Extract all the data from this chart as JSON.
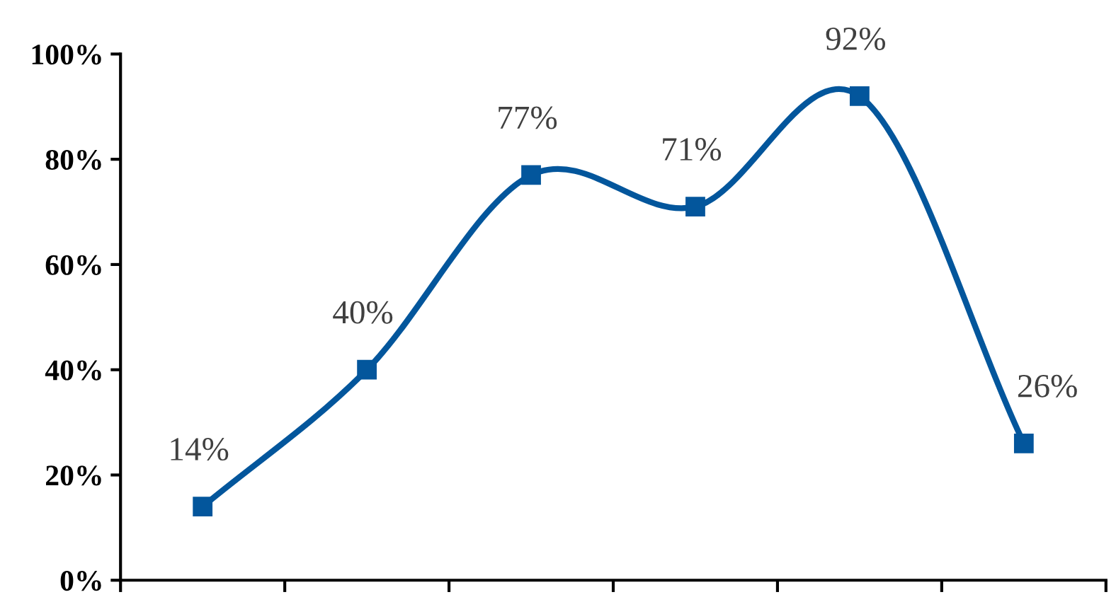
{
  "chart_data": {
    "type": "line",
    "categories": [
      null,
      null,
      null,
      null,
      null,
      null
    ],
    "series": [
      {
        "color": "#03569c",
        "values": [
          14,
          40,
          77,
          71,
          92,
          26
        ]
      }
    ],
    "value_labels": [
      "14%",
      "40%",
      "77%",
      "71%",
      "92%",
      "26%"
    ],
    "ylim": [
      0,
      100
    ],
    "yticks": [
      {
        "value": 0,
        "label": "0%"
      },
      {
        "value": 20,
        "label": "20%"
      },
      {
        "value": 40,
        "label": "40%"
      },
      {
        "value": 60,
        "label": "60%"
      },
      {
        "value": 80,
        "label": "80%"
      },
      {
        "value": 100,
        "label": "100%"
      }
    ],
    "marker": "square",
    "line_style": "solid",
    "grid": false,
    "legend": false
  }
}
